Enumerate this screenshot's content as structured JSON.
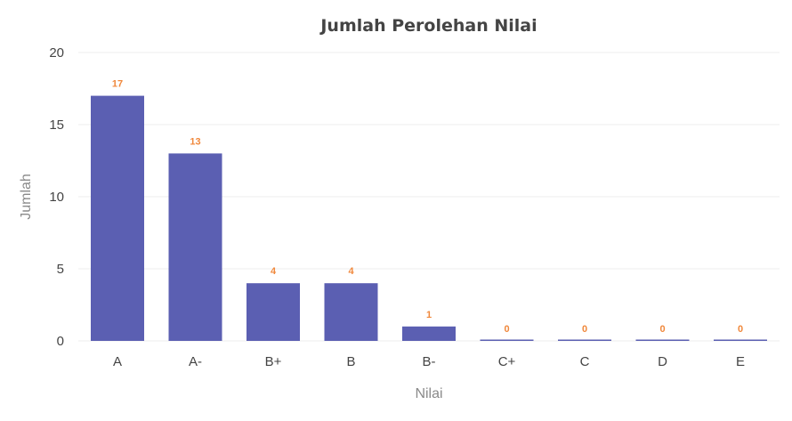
{
  "chart_data": {
    "type": "bar",
    "title": "Jumlah Perolehan Nilai",
    "xlabel": "Nilai",
    "ylabel": "Jumlah",
    "categories": [
      "A",
      "A-",
      "B+",
      "B",
      "B-",
      "C+",
      "C",
      "D",
      "E"
    ],
    "values": [
      17,
      13,
      4,
      4,
      1,
      0,
      0,
      0,
      0
    ],
    "ylim": [
      0,
      20
    ],
    "yticks": [
      0,
      5,
      10,
      15,
      20
    ],
    "grid": true,
    "legend": "none",
    "data_labels": true,
    "colors": {
      "bar": "#5b5fb2",
      "data_label": "#f0883c"
    }
  }
}
